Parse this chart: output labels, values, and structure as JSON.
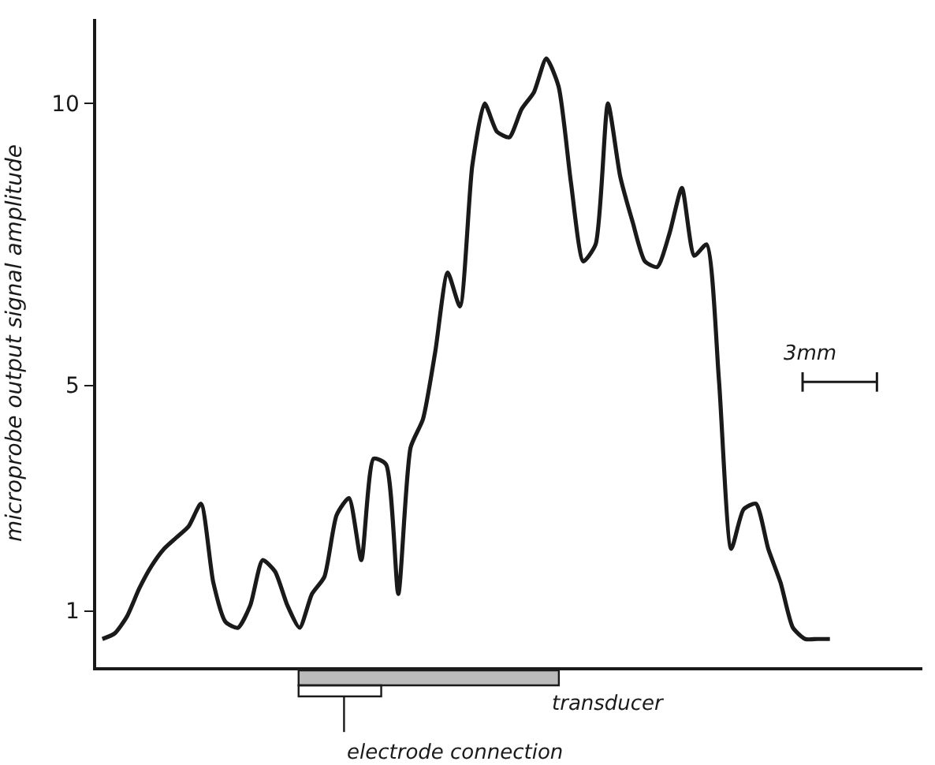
{
  "chart_data": {
    "type": "line",
    "ylabel": "microprobe output signal amplitude",
    "categories": [
      null,
      null,
      null,
      null,
      null,
      null,
      null,
      null,
      null,
      null,
      null,
      null,
      null,
      null,
      null,
      null,
      null,
      null,
      null,
      null,
      null,
      null,
      null,
      null,
      null,
      null,
      null,
      null,
      null,
      null,
      null,
      null,
      null,
      null,
      null,
      null,
      null,
      null,
      null,
      null,
      null,
      null,
      null,
      null,
      null,
      null,
      null,
      null,
      null,
      null,
      null,
      null,
      null,
      null,
      null,
      null,
      null,
      null,
      null,
      null
    ],
    "series": [
      {
        "color": "#1a1a1a",
        "values": [
          0.5,
          0.6,
          0.9,
          1.4,
          1.8,
          2.1,
          2.3,
          2.5,
          2.9,
          1.5,
          0.8,
          0.7,
          1.1,
          1.9,
          1.7,
          1.1,
          0.7,
          1.3,
          1.6,
          2.7,
          3.0,
          1.9,
          3.7,
          3.6,
          1.3,
          3.9,
          4.4,
          5.6,
          7.0,
          6.4,
          8.9,
          10.0,
          9.5,
          9.4,
          9.9,
          10.2,
          10.8,
          10.3,
          8.6,
          7.2,
          7.5,
          10.0,
          8.7,
          7.9,
          7.2,
          7.1,
          7.7,
          8.5,
          7.3,
          7.5,
          5.1,
          2.1,
          2.8,
          2.9,
          2.1,
          1.5,
          0.7,
          0.5,
          0.5,
          0.5
        ]
      }
    ],
    "ylim": [
      0,
      11.5
    ],
    "yticks": [
      1,
      5,
      10
    ],
    "tick_labels": "y",
    "marker": "none",
    "line_style": "solid",
    "annotations": [
      "3mm",
      "transducer",
      "electrode connection"
    ]
  }
}
